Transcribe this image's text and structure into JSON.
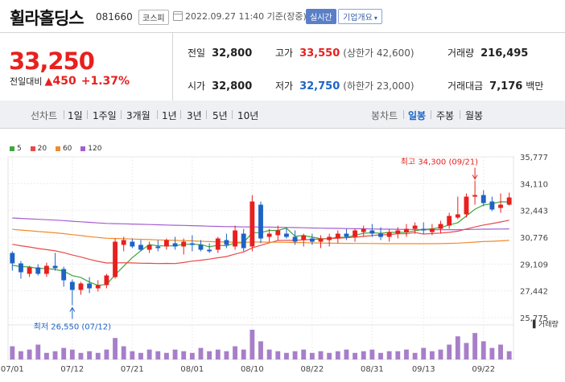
{
  "header": {
    "name": "휠라홀딩스",
    "code": "081660",
    "market": "코스피",
    "timestamp": "2022.09.27 11:40 기준(장중)",
    "realtime": "실시간",
    "company_info": "기업개요"
  },
  "quote": {
    "price": "33,250",
    "change_label": "전일대비",
    "change_arrow": "▲",
    "change_amount": "450",
    "change_percent": "+1.37%",
    "prev_label": "전일",
    "prev": "32,800",
    "high_label": "고가",
    "high": "33,550",
    "upper_limit": "(상한가 42,600)",
    "volume_label": "거래량",
    "volume": "216,495",
    "open_label": "시가",
    "open": "32,800",
    "low_label": "저가",
    "low": "32,750",
    "lower_limit": "(하한가 23,000)",
    "amount_label": "거래대금",
    "amount": "7,176",
    "amount_unit": "백만"
  },
  "tabs": {
    "line_chart": "선차트",
    "periods": [
      "1일",
      "1주일",
      "3개월",
      "1년",
      "3년",
      "5년",
      "10년"
    ],
    "candle_chart": "봉차트",
    "candle_periods": [
      "일봉",
      "주봉",
      "월봉"
    ],
    "selected_candle": "일봉"
  },
  "colors": {
    "up": "#e8201e",
    "down": "#1e63c6",
    "ma5": "#3fa73a",
    "ma20": "#e84a4a",
    "ma60": "#f08c2e",
    "ma120": "#a35fd0",
    "volume": "#a77fc9"
  },
  "chart_data": {
    "type": "candlestick",
    "moving_average_legend": [
      {
        "name": "5",
        "color": "#3fa73a"
      },
      {
        "name": "20",
        "color": "#e84a4a"
      },
      {
        "name": "60",
        "color": "#f08c2e"
      },
      {
        "name": "120",
        "color": "#a35fd0"
      }
    ],
    "y_ticks": [
      "35,777",
      "34,110",
      "32,443",
      "30,776",
      "29,109",
      "27,442",
      "25,775"
    ],
    "ylim": [
      25775,
      35777
    ],
    "x_ticks": [
      {
        "label": "07/01",
        "index": 0
      },
      {
        "label": "07/12",
        "index": 7
      },
      {
        "label": "07/21",
        "index": 14
      },
      {
        "label": "08/01",
        "index": 21
      },
      {
        "label": "08/10",
        "index": 28
      },
      {
        "label": "08/22",
        "index": 35
      },
      {
        "label": "08/31",
        "index": 42
      },
      {
        "label": "09/13",
        "index": 48
      },
      {
        "label": "09/22",
        "index": 55
      }
    ],
    "max_annotation": {
      "text": "최고 34,300 (09/21)",
      "index": 54,
      "value": 34300
    },
    "min_annotation": {
      "text": "최저 26,550 (07/12)",
      "index": 7,
      "value": 26550
    },
    "volume_label": "거래량",
    "candles": [
      [
        29800,
        29900,
        28700,
        29150
      ],
      [
        29150,
        29300,
        28200,
        28600
      ],
      [
        28500,
        29000,
        28300,
        28900
      ],
      [
        28900,
        29100,
        28400,
        28500
      ],
      [
        28500,
        29200,
        28300,
        29000
      ],
      [
        29000,
        29800,
        28700,
        28850
      ],
      [
        28800,
        28950,
        27700,
        28100
      ],
      [
        28000,
        28150,
        26550,
        27500
      ],
      [
        27500,
        28000,
        27200,
        27900
      ],
      [
        27900,
        28300,
        27300,
        27600
      ],
      [
        27600,
        28100,
        27400,
        27800
      ],
      [
        27800,
        28500,
        27600,
        28400
      ],
      [
        28300,
        30700,
        28200,
        30500
      ],
      [
        30300,
        30800,
        29900,
        30600
      ],
      [
        30500,
        30700,
        30100,
        30200
      ],
      [
        30300,
        30600,
        29900,
        30000
      ],
      [
        30000,
        30500,
        29800,
        30300
      ],
      [
        30200,
        30600,
        29900,
        30100
      ],
      [
        30200,
        30700,
        30000,
        30600
      ],
      [
        30400,
        30800,
        30000,
        30200
      ],
      [
        30200,
        30700,
        29700,
        30500
      ],
      [
        30400,
        30900,
        29900,
        30300
      ],
      [
        30300,
        30600,
        29900,
        30000
      ],
      [
        30000,
        30400,
        29800,
        29900
      ],
      [
        30000,
        30800,
        29800,
        30700
      ],
      [
        30600,
        31000,
        30100,
        30300
      ],
      [
        30200,
        31500,
        30000,
        31200
      ],
      [
        31000,
        31300,
        29900,
        30100
      ],
      [
        30200,
        33400,
        29900,
        33000
      ],
      [
        32800,
        33000,
        30400,
        30700
      ],
      [
        30800,
        31300,
        30500,
        31000
      ],
      [
        30900,
        31500,
        30600,
        31200
      ],
      [
        31000,
        31400,
        30700,
        30800
      ],
      [
        30800,
        31200,
        30300,
        30500
      ],
      [
        30600,
        31000,
        30200,
        30900
      ],
      [
        30700,
        31000,
        30300,
        30500
      ],
      [
        30500,
        30900,
        30100,
        30700
      ],
      [
        30600,
        31000,
        30200,
        30800
      ],
      [
        30700,
        31200,
        30400,
        31000
      ],
      [
        31000,
        31300,
        30600,
        30800
      ],
      [
        30800,
        31300,
        30500,
        31200
      ],
      [
        31100,
        31500,
        30800,
        31300
      ],
      [
        31200,
        31600,
        30800,
        31000
      ],
      [
        31000,
        31400,
        30600,
        30800
      ],
      [
        30800,
        31300,
        30500,
        31100
      ],
      [
        31000,
        31400,
        30700,
        31200
      ],
      [
        31100,
        31600,
        30800,
        31300
      ],
      [
        31300,
        31700,
        31000,
        31500
      ],
      [
        31300,
        31700,
        31000,
        31200
      ],
      [
        31100,
        31600,
        30900,
        31300
      ],
      [
        31300,
        31800,
        31000,
        31600
      ],
      [
        31500,
        32300,
        31300,
        32100
      ],
      [
        32000,
        33300,
        31900,
        32200
      ],
      [
        32200,
        33500,
        32000,
        33300
      ],
      [
        33300,
        34300,
        32800,
        33400
      ],
      [
        33400,
        33700,
        32700,
        32900
      ],
      [
        33000,
        33300,
        32400,
        32500
      ],
      [
        32600,
        33500,
        32300,
        32800
      ],
      [
        32800,
        33550,
        32750,
        33250
      ]
    ],
    "volumes": [
      8,
      5,
      6,
      9,
      4,
      5,
      7,
      6,
      4,
      5,
      4,
      6,
      13,
      8,
      5,
      4,
      6,
      5,
      4,
      6,
      5,
      4,
      7,
      5,
      6,
      5,
      8,
      6,
      18,
      11,
      6,
      5,
      4,
      5,
      6,
      4,
      5,
      4,
      5,
      6,
      4,
      5,
      6,
      4,
      5,
      5,
      6,
      4,
      7,
      5,
      6,
      9,
      14,
      10,
      16,
      11,
      7,
      9,
      5
    ]
  }
}
